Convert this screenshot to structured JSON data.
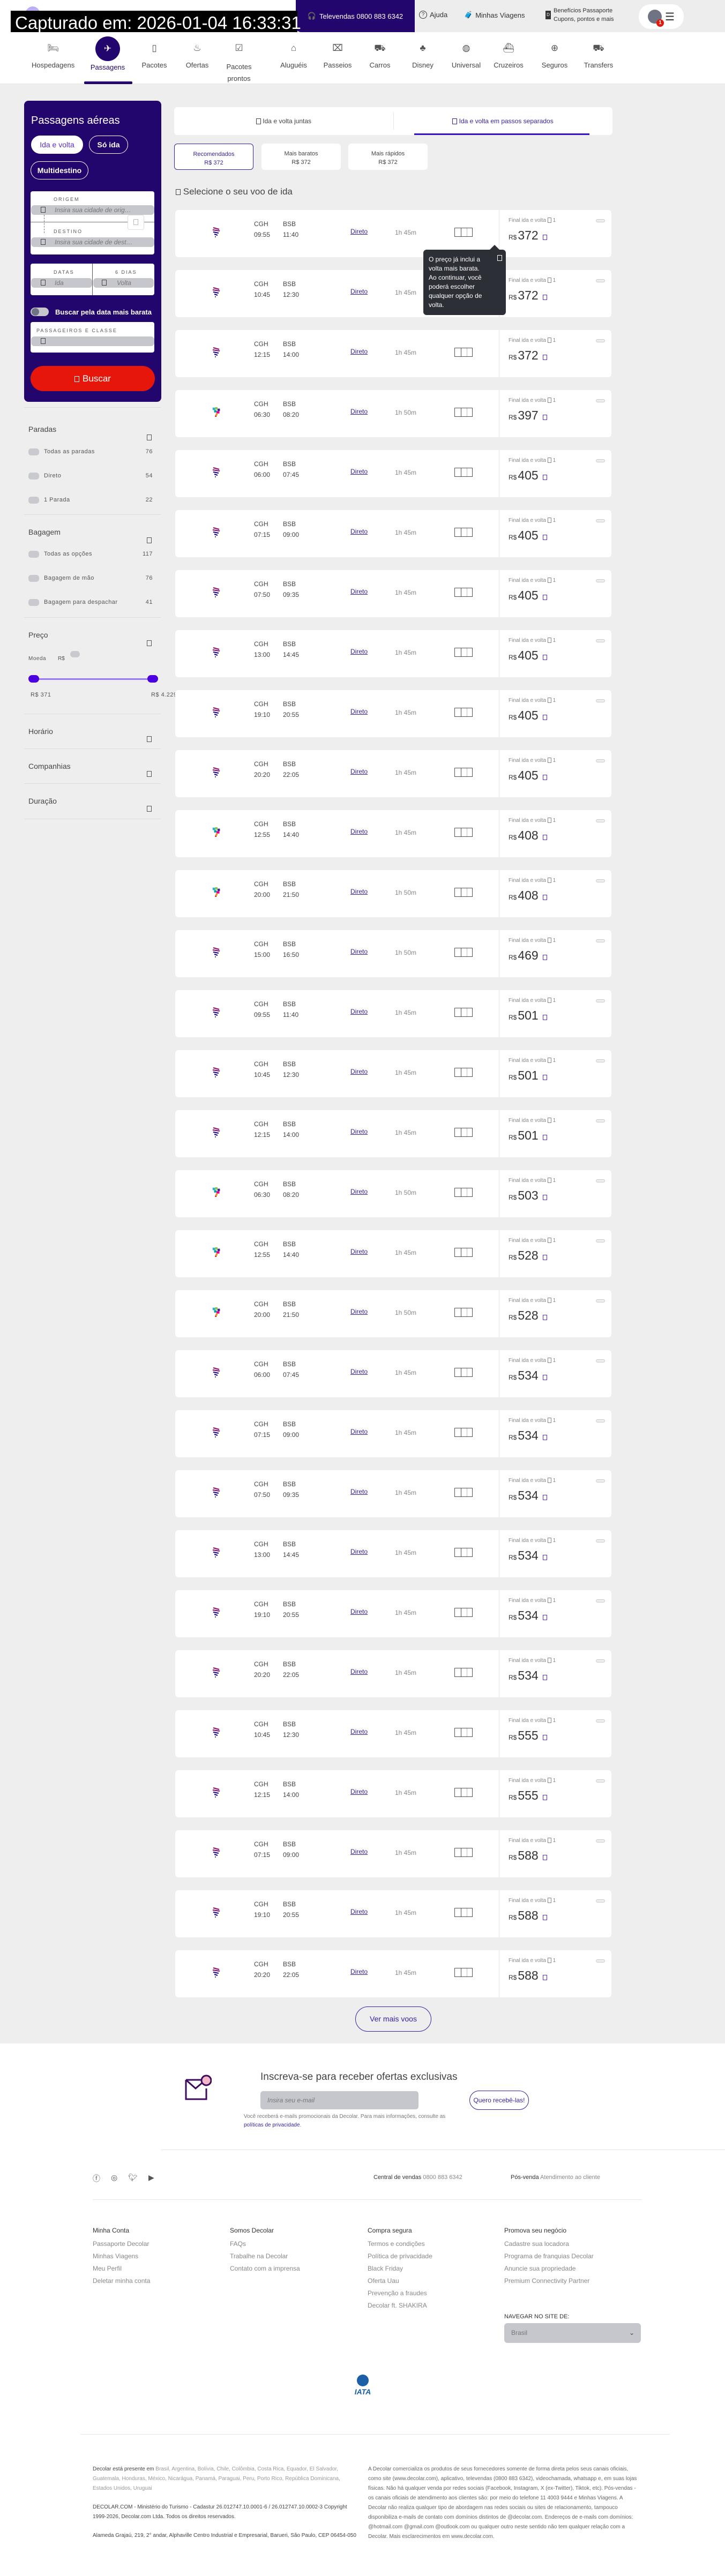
{
  "capture_banner": "Capturado em: 2026-01-04 16:33:31",
  "header": {
    "televendas": "Televendas 0800 883 6342",
    "ajuda": "Ajuda",
    "minhas_viagens": "Minhas Viagens",
    "beneficios_line1": "Benefícios Passaporte",
    "beneficios_line2": "Cupons, pontos e mais",
    "notification_count": "1"
  },
  "nav": {
    "items": [
      {
        "label": "Hospedagens",
        "icon": "bed-icon"
      },
      {
        "label": "Passagens",
        "icon": "plane-icon",
        "active": true
      },
      {
        "label": "Pacotes",
        "icon": "luggage-icon"
      },
      {
        "label": "Ofertas",
        "icon": "flame-icon"
      },
      {
        "label": "Pacotes prontos",
        "icon": "package-check-icon"
      },
      {
        "label": "Aluguéis",
        "icon": "house-icon"
      },
      {
        "label": "Passeios",
        "icon": "ticket-icon"
      },
      {
        "label": "Carros",
        "icon": "car-icon"
      },
      {
        "label": "Disney",
        "icon": "mickey-icon"
      },
      {
        "label": "Universal",
        "icon": "globe-icon"
      },
      {
        "label": "Cruzeiros",
        "icon": "ship-icon"
      },
      {
        "label": "Seguros",
        "icon": "insurance-icon"
      },
      {
        "label": "Transfers",
        "icon": "bus-icon"
      }
    ]
  },
  "search": {
    "title": "Passagens aéreas",
    "trip_types": [
      "Ida e volta",
      "Só ida",
      "Multidestino"
    ],
    "selected_trip_type": "Ida e volta",
    "origin_label": "ORIGEM",
    "origin_placeholder": "Insira sua cidade de orig…",
    "destination_label": "DESTINO",
    "destination_placeholder": "Insira sua cidade de dest…",
    "dates_label": "DATAS",
    "days_label": "6 DIAS",
    "ida_placeholder": "Ida",
    "volta_placeholder": "Volta",
    "cheapest_toggle_label": "Buscar pela data mais barata",
    "cheapest_toggle_on": false,
    "passengers_label": "PASSAGEIROS E CLASSE",
    "passengers_value": "",
    "search_button": "Buscar"
  },
  "filters": {
    "paradas": {
      "title": "Paradas",
      "options": [
        {
          "label": "Todas as paradas",
          "count": "76"
        },
        {
          "label": "Direto",
          "count": "54"
        },
        {
          "label": "1 Parada",
          "count": "22"
        }
      ]
    },
    "bagagem": {
      "title": "Bagagem",
      "options": [
        {
          "label": "Todas as opções",
          "count": "117"
        },
        {
          "label": "Bagagem de mão",
          "count": "76"
        },
        {
          "label": "Bagagem para despachar",
          "count": "41"
        }
      ]
    },
    "preco": {
      "title": "Preço",
      "currency_label": "Moeda",
      "currency": "R$",
      "min": "R$ 371",
      "max": "R$ 4.229",
      "range_selected": [
        0,
        1
      ]
    },
    "horario": "Horário",
    "companhias": "Companhias",
    "duracao": "Duração"
  },
  "tabs": {
    "items": [
      "Ida e volta juntas",
      "Ida e volta em passos separados"
    ],
    "active": 1
  },
  "sort": [
    {
      "label": "Recomendados",
      "price": "R$ 372",
      "active": true
    },
    {
      "label": "Mais baratos",
      "price": "R$ 372"
    },
    {
      "label": "Mais rápidos",
      "price": "R$ 372"
    }
  ],
  "section_title": "Selecione o seu voo de ida",
  "flight_common": {
    "origin": "CGH",
    "destination": "BSB",
    "stops": "Direto",
    "price_label": "Final ida e volta",
    "passengers": "1",
    "currency": "R$"
  },
  "flights": [
    {
      "dep": "09:55",
      "arr": "11:40",
      "dur": "1h 45m",
      "price": "372",
      "airline_logo": "latam"
    },
    {
      "dep": "10:45",
      "arr": "12:30",
      "dur": "1h 45m",
      "price": "372",
      "airline_logo": "latam"
    },
    {
      "dep": "12:15",
      "arr": "14:00",
      "dur": "1h 45m",
      "price": "372",
      "airline_logo": "latam"
    },
    {
      "dep": "06:30",
      "arr": "08:20",
      "dur": "1h 50m",
      "price": "397",
      "airline_logo": "azul"
    },
    {
      "dep": "06:00",
      "arr": "07:45",
      "dur": "1h 45m",
      "price": "405",
      "airline_logo": "latam"
    },
    {
      "dep": "07:15",
      "arr": "09:00",
      "dur": "1h 45m",
      "price": "405",
      "airline_logo": "latam"
    },
    {
      "dep": "07:50",
      "arr": "09:35",
      "dur": "1h 45m",
      "price": "405",
      "airline_logo": "latam"
    },
    {
      "dep": "13:00",
      "arr": "14:45",
      "dur": "1h 45m",
      "price": "405",
      "airline_logo": "latam"
    },
    {
      "dep": "19:10",
      "arr": "20:55",
      "dur": "1h 45m",
      "price": "405",
      "airline_logo": "latam"
    },
    {
      "dep": "20:20",
      "arr": "22:05",
      "dur": "1h 45m",
      "price": "405",
      "airline_logo": "latam"
    },
    {
      "dep": "12:55",
      "arr": "14:40",
      "dur": "1h 45m",
      "price": "408",
      "airline_logo": "azul"
    },
    {
      "dep": "20:00",
      "arr": "21:50",
      "dur": "1h 50m",
      "price": "408",
      "airline_logo": "azul"
    },
    {
      "dep": "15:00",
      "arr": "16:50",
      "dur": "1h 50m",
      "price": "469",
      "airline_logo": "latam"
    },
    {
      "dep": "09:55",
      "arr": "11:40",
      "dur": "1h 45m",
      "price": "501",
      "airline_logo": "latam"
    },
    {
      "dep": "10:45",
      "arr": "12:30",
      "dur": "1h 45m",
      "price": "501",
      "airline_logo": "latam"
    },
    {
      "dep": "12:15",
      "arr": "14:00",
      "dur": "1h 45m",
      "price": "501",
      "airline_logo": "latam"
    },
    {
      "dep": "06:30",
      "arr": "08:20",
      "dur": "1h 50m",
      "price": "503",
      "airline_logo": "azul"
    },
    {
      "dep": "12:55",
      "arr": "14:40",
      "dur": "1h 45m",
      "price": "528",
      "airline_logo": "azul"
    },
    {
      "dep": "20:00",
      "arr": "21:50",
      "dur": "1h 50m",
      "price": "528",
      "airline_logo": "azul"
    },
    {
      "dep": "06:00",
      "arr": "07:45",
      "dur": "1h 45m",
      "price": "534",
      "airline_logo": "latam"
    },
    {
      "dep": "07:15",
      "arr": "09:00",
      "dur": "1h 45m",
      "price": "534",
      "airline_logo": "latam"
    },
    {
      "dep": "07:50",
      "arr": "09:35",
      "dur": "1h 45m",
      "price": "534",
      "airline_logo": "latam"
    },
    {
      "dep": "13:00",
      "arr": "14:45",
      "dur": "1h 45m",
      "price": "534",
      "airline_logo": "latam"
    },
    {
      "dep": "19:10",
      "arr": "20:55",
      "dur": "1h 45m",
      "price": "534",
      "airline_logo": "latam"
    },
    {
      "dep": "20:20",
      "arr": "22:05",
      "dur": "1h 45m",
      "price": "534",
      "airline_logo": "latam"
    },
    {
      "dep": "10:45",
      "arr": "12:30",
      "dur": "1h 45m",
      "price": "555",
      "airline_logo": "latam"
    },
    {
      "dep": "12:15",
      "arr": "14:00",
      "dur": "1h 45m",
      "price": "555",
      "airline_logo": "latam"
    },
    {
      "dep": "07:15",
      "arr": "09:00",
      "dur": "1h 45m",
      "price": "588",
      "airline_logo": "latam"
    },
    {
      "dep": "19:10",
      "arr": "20:55",
      "dur": "1h 45m",
      "price": "588",
      "airline_logo": "latam"
    },
    {
      "dep": "20:20",
      "arr": "22:05",
      "dur": "1h 45m",
      "price": "588",
      "airline_logo": "latam"
    }
  ],
  "tooltip": {
    "line1": "O preço já inclui a volta mais barata.",
    "line2": "Ao continuar, você poderá escolher",
    "line3": "qualquer opção de volta."
  },
  "more_button": "Ver mais voos",
  "newsletter": {
    "title": "Inscreva-se para receber ofertas exclusivas",
    "email_placeholder": "Insira seu e-mail",
    "button": "Quero recebê-las!",
    "note": "Você receberá e-mails promocionais da Decolar. Para mais informações, consulte as",
    "privacy_link": "políticas de privacidade",
    "note_end": "."
  },
  "footer": {
    "social": [
      "facebook-icon",
      "instagram-icon",
      "twitter-icon",
      "youtube-icon"
    ],
    "central_label": "Central de vendas",
    "central_phone": "0800 883 6342",
    "posvenda_label": "Pós-venda",
    "posvenda_link": "Atendimento ao cliente",
    "columns": [
      {
        "title": "Minha Conta",
        "links": [
          "Passaporte Decolar",
          "Minhas Viagens",
          "Meu Perfil",
          "Deletar minha conta"
        ]
      },
      {
        "title": "Somos Decolar",
        "links": [
          "FAQs",
          "Trabalhe na Decolar",
          "Contato com a imprensa"
        ]
      },
      {
        "title": "Compra segura",
        "links": [
          "Termos e condições",
          "Política de privacidade",
          "Black Friday",
          "Oferta Uau",
          "Prevenção a fraudes",
          "Decolar ft. SHAKIRA"
        ]
      },
      {
        "title": "Promova seu negócio",
        "links": [
          "Cadastre sua locadora",
          "Programa de franquias Decolar",
          "Anuncie sua propriedade",
          "Premium Connectivity Partner"
        ]
      }
    ],
    "site_label": "NAVEGAR NO SITE DE:",
    "site_value": "Brasil",
    "iata_logo": "IATA",
    "presence_label": "Decolar está presente em",
    "countries": "Brasil, Argentina, Bolívia, Chile, Colômbia, Costa Rica, Equador, El Salvador, Guatemala, Honduras, México, Nicarágua, Panamá, Paraguai, Peru, Porto Rico, República Dominicana, Estados Unidos, Uruguai",
    "legal": "DECOLAR.COM - Ministério do Turismo - Cadastur 26.012747.10.0001-6 / 26.012747.10.0002-3 Copyright 1999-2026, Decolar.com Ltda. Todos os direitos reservados.",
    "address": "Alameda Grajaú, 219, 2° andar, Alphaville Centro Industrial e Empresarial, Barueri, São Paulo, CEP 06454-050",
    "disclaimer": "A Decolar comercializa os produtos de seus fornecedores somente de forma direta pelos seus canais oficiais, como site (www.decolar.com), aplicativo, televendas (0800 883 6342), videochamada, whatsapp e, em suas lojas físicas. Não há qualquer venda por redes sociais (Facebook, Instagram, X (ex-Twitter), Tiktok, etc). Pós-vendas - os canais oficiais de atendimento aos clientes são: por meio do telefone 11 4003 9444 e Minhas Viagens. A Decolar não realiza qualquer tipo de abordagem nas redes sociais ou sites de relacionamento, tampouco disponibiliza e-mails de contato com domínios distintos de @decolar.com. Endereços de e-mails com domínios: @hotmail.com @gmail.com @outlook.com ou qualquer outro neste sentido não tem qualquer relação com a Decolar. Mais esclarecimentos em www.decolar.com."
  },
  "colors": {
    "brand": "#23056e",
    "accent": "#4b00e0",
    "search_button": "#e6170a",
    "link": "#3a1fa0"
  }
}
